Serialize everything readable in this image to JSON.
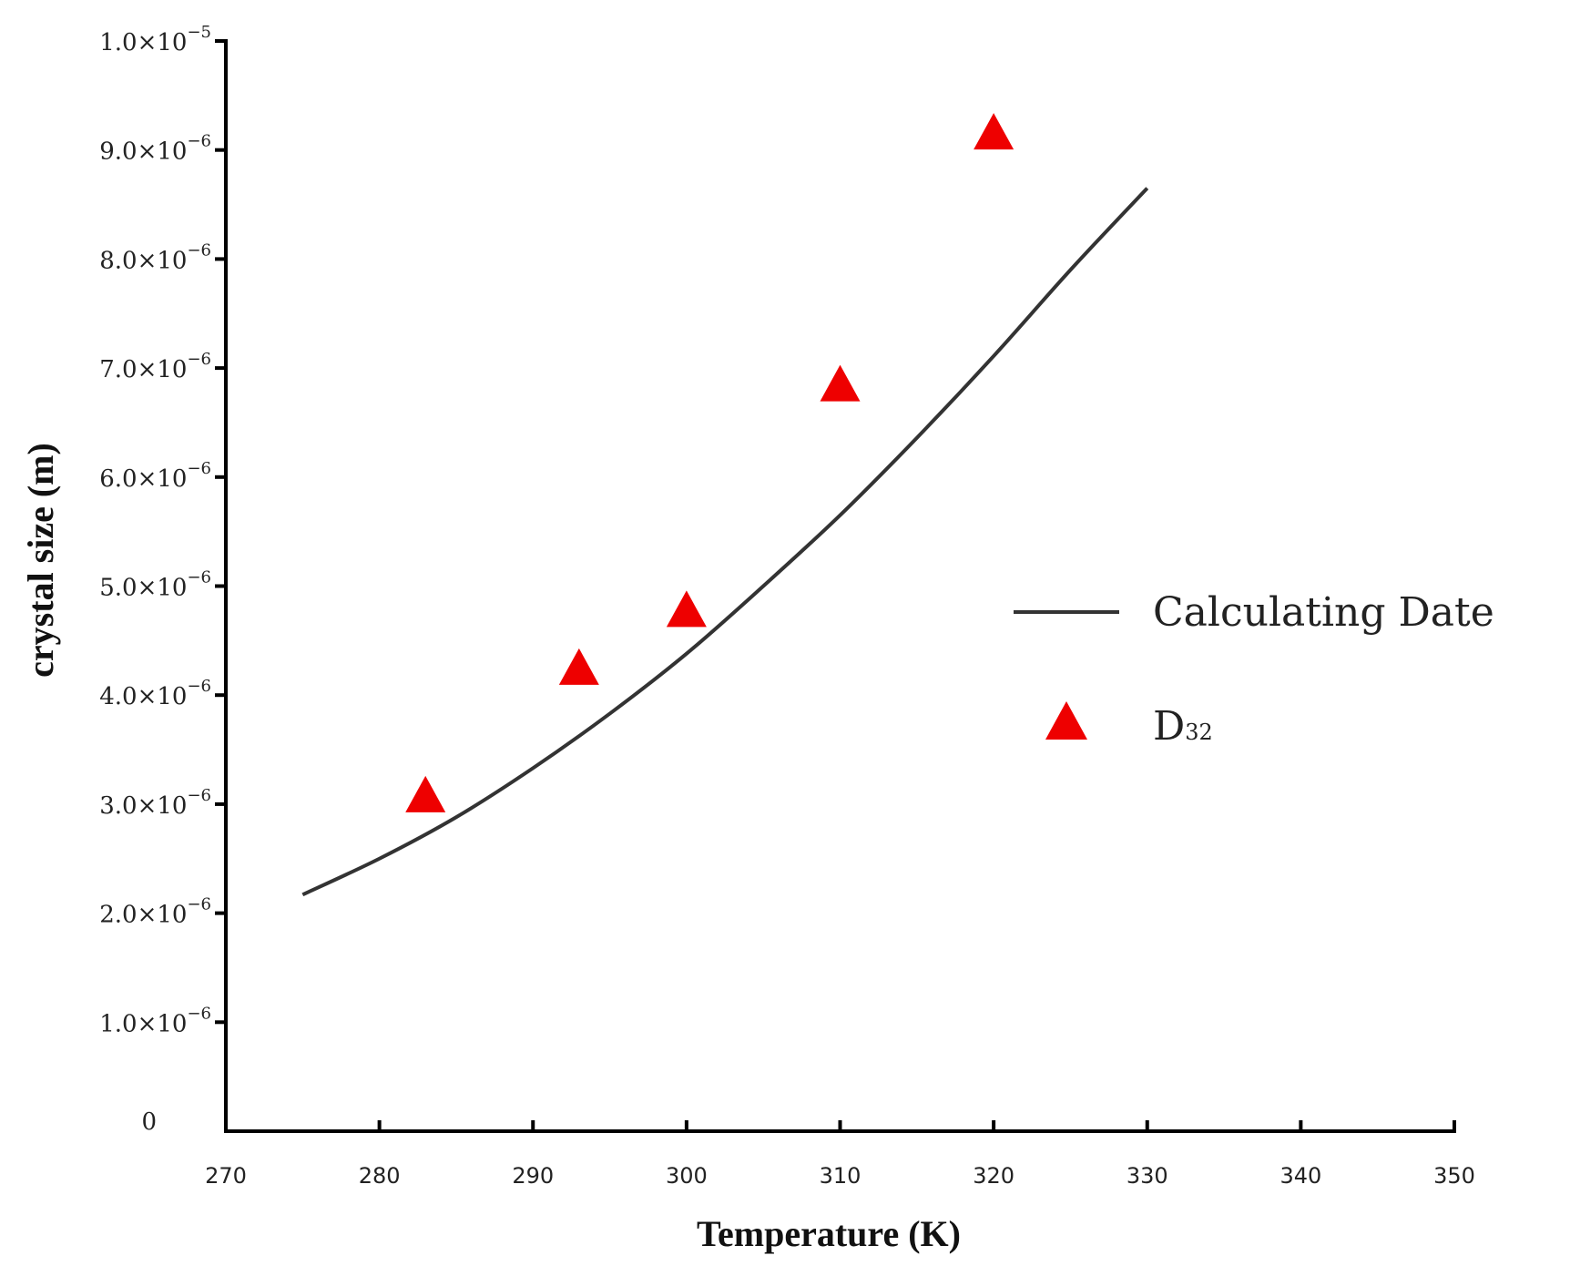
{
  "chart_data": {
    "type": "scatter",
    "title": "",
    "xlabel": "Temperature (K)",
    "ylabel": "crystal size (m)",
    "xlim": [
      270,
      350
    ],
    "ylim": [
      0,
      1e-05
    ],
    "x_ticks": [
      270,
      280,
      290,
      300,
      310,
      320,
      330,
      340,
      350
    ],
    "x_tick_labels": [
      "270",
      "280",
      "290",
      "300",
      "310",
      "320",
      "330",
      "340",
      "350"
    ],
    "y_ticks": [
      0,
      1e-06,
      2e-06,
      3e-06,
      4e-06,
      5e-06,
      6e-06,
      7e-06,
      8e-06,
      9e-06,
      1e-05
    ],
    "y_tick_labels": [
      {
        "mantissa": "0",
        "exp": ""
      },
      {
        "mantissa": "1.0×10",
        "exp": "−6"
      },
      {
        "mantissa": "2.0×10",
        "exp": "−6"
      },
      {
        "mantissa": "3.0×10",
        "exp": "−6"
      },
      {
        "mantissa": "4.0×10",
        "exp": "−6"
      },
      {
        "mantissa": "5.0×10",
        "exp": "−6"
      },
      {
        "mantissa": "6.0×10",
        "exp": "−6"
      },
      {
        "mantissa": "7.0×10",
        "exp": "−6"
      },
      {
        "mantissa": "8.0×10",
        "exp": "−6"
      },
      {
        "mantissa": "9.0×10",
        "exp": "−6"
      },
      {
        "mantissa": "1.0×10",
        "exp": "−5"
      }
    ],
    "grid": false,
    "legend_position": "right",
    "series": [
      {
        "name": "Calculating Date",
        "kind": "line",
        "color": "#333333",
        "x": [
          275,
          280,
          285,
          290,
          295,
          300,
          305,
          310,
          315,
          320,
          325,
          330
        ],
        "y": [
          2.17e-06,
          2.5e-06,
          2.88e-06,
          3.33e-06,
          3.83e-06,
          4.38e-06,
          5e-06,
          5.65e-06,
          6.36e-06,
          7.11e-06,
          7.9e-06,
          8.65e-06
        ]
      },
      {
        "name": "D",
        "name_sub": "32",
        "kind": "scatter",
        "marker": "triangle",
        "color": "#ee0000",
        "x": [
          283,
          293,
          300,
          310,
          320
        ],
        "y": [
          3.05e-06,
          4.22e-06,
          4.75e-06,
          6.82e-06,
          9.13e-06
        ]
      }
    ]
  }
}
